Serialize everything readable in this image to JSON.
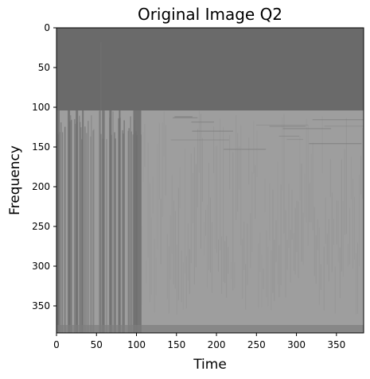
{
  "chart_data": {
    "type": "heatmap",
    "title": "Original Image Q2",
    "xlabel": "Time",
    "ylabel": "Frequency",
    "xlim": [
      0,
      384
    ],
    "ylim": [
      384,
      0
    ],
    "xticks": [
      0,
      50,
      100,
      150,
      200,
      250,
      300,
      350
    ],
    "yticks": [
      0,
      50,
      100,
      150,
      200,
      250,
      300,
      350
    ],
    "grid": false,
    "colormap": "gray",
    "colors": {
      "upper_band": "#6a6a6a",
      "lower_band": "#9e9e9e",
      "dark_streak": "#6e6e6e"
    },
    "regions": [
      {
        "name": "flat-upper-band",
        "freq_range": [
          0,
          104
        ],
        "time_range": [
          0,
          384
        ]
      },
      {
        "name": "textured-lower-band",
        "freq_range": [
          104,
          384
        ],
        "time_range": [
          0,
          384
        ]
      },
      {
        "name": "dark-segment",
        "freq_range": [
          104,
          384
        ],
        "time_range": [
          0,
          106
        ]
      }
    ]
  }
}
